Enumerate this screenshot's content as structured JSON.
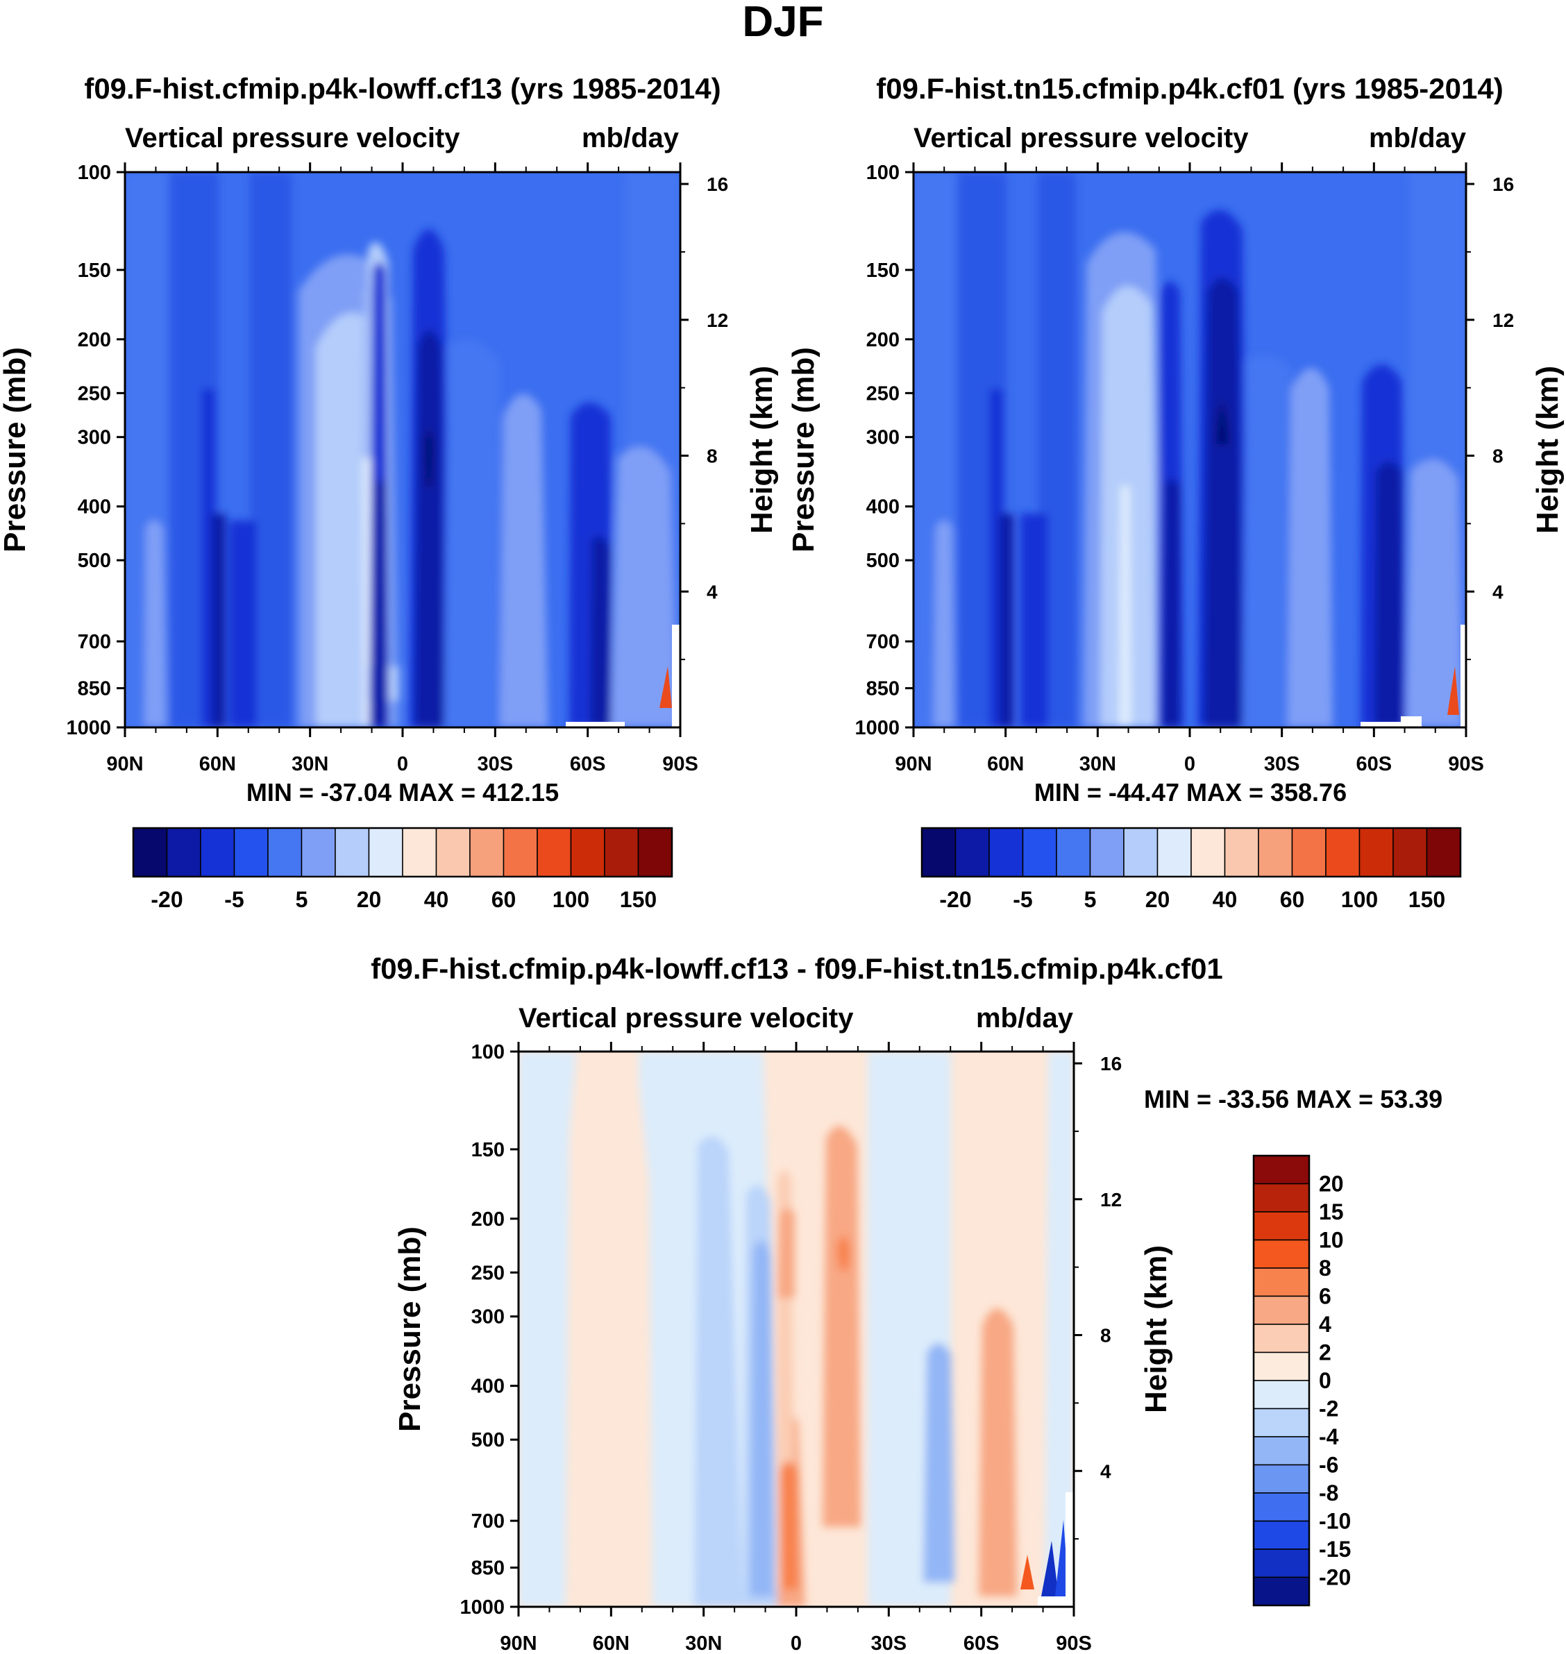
{
  "figure": {
    "title": "DJF",
    "colors": {
      "dark_navy": "#0a0f80",
      "deep_blue": "#1532d6",
      "mid_blue": "#3b6ef0",
      "light_blue": "#b4cdfb",
      "pale_peach": "#fde7d8",
      "light_salmon": "#f6b79a",
      "orange_red": "#e8501f",
      "dark_red": "#8b0a0a"
    }
  },
  "chart_data": [
    {
      "type": "heatmap",
      "title": "f09.F-hist.cfmip.p4k-lowff.cf13 (yrs 1985-2014)",
      "subtitle_left": "Vertical pressure velocity",
      "subtitle_right": "mb/day",
      "xlabel": "",
      "ylabel": "Pressure (mb)",
      "y2label": "Height (km)",
      "x_ticks": [
        "90N",
        "60N",
        "30N",
        "0",
        "30S",
        "60S",
        "90S"
      ],
      "y_ticks": [
        100,
        150,
        200,
        250,
        300,
        400,
        500,
        700,
        850,
        1000
      ],
      "y_scale": "log",
      "y_reversed": true,
      "y2_ticks": [
        16,
        12,
        8,
        4
      ],
      "stats": "MIN = -37.04  MAX = 412.15",
      "min": -37.04,
      "max": 412.15,
      "colorbar": {
        "orientation": "horizontal",
        "labels": [
          "-20",
          "-5",
          "5",
          "20",
          "40",
          "60",
          "100",
          "150"
        ],
        "colors": [
          "#06086e",
          "#0c1aa6",
          "#1532d6",
          "#2352ee",
          "#4577f2",
          "#7f9ff6",
          "#b4cdfb",
          "#deebfd",
          "#fde7d8",
          "#f9c8ae",
          "#f6a07c",
          "#f37347",
          "#ea4a1c",
          "#cc2c08",
          "#aa1c0a",
          "#7e0606"
        ]
      }
    },
    {
      "type": "heatmap",
      "title": "f09.F-hist.tn15.cfmip.p4k.cf01 (yrs 1985-2014)",
      "subtitle_left": "Vertical pressure velocity",
      "subtitle_right": "mb/day",
      "xlabel": "",
      "ylabel": "Pressure (mb)",
      "y2label": "Height (km)",
      "x_ticks": [
        "90N",
        "60N",
        "30N",
        "0",
        "30S",
        "60S",
        "90S"
      ],
      "y_ticks": [
        100,
        150,
        200,
        250,
        300,
        400,
        500,
        700,
        850,
        1000
      ],
      "y_scale": "log",
      "y_reversed": true,
      "y2_ticks": [
        16,
        12,
        8,
        4
      ],
      "stats": "MIN = -44.47  MAX = 358.76",
      "min": -44.47,
      "max": 358.76,
      "colorbar": {
        "orientation": "horizontal",
        "labels": [
          "-20",
          "-5",
          "5",
          "20",
          "40",
          "60",
          "100",
          "150"
        ],
        "colors": [
          "#06086e",
          "#0c1aa6",
          "#1532d6",
          "#2352ee",
          "#4577f2",
          "#7f9ff6",
          "#b4cdfb",
          "#deebfd",
          "#fde7d8",
          "#f9c8ae",
          "#f6a07c",
          "#f37347",
          "#ea4a1c",
          "#cc2c08",
          "#aa1c0a",
          "#7e0606"
        ]
      }
    },
    {
      "type": "heatmap",
      "title": "f09.F-hist.cfmip.p4k-lowff.cf13 - f09.F-hist.tn15.cfmip.p4k.cf01",
      "subtitle_left": "Vertical pressure velocity",
      "subtitle_right": "mb/day",
      "xlabel": "",
      "ylabel": "Pressure (mb)",
      "y2label": "Height (km)",
      "x_ticks": [
        "90N",
        "60N",
        "30N",
        "0",
        "30S",
        "60S",
        "90S"
      ],
      "y_ticks": [
        100,
        150,
        200,
        250,
        300,
        400,
        500,
        700,
        850,
        1000
      ],
      "y_scale": "log",
      "y_reversed": true,
      "y2_ticks": [
        16,
        12,
        8,
        4
      ],
      "stats": "MIN = -33.56  MAX =  53.39",
      "min": -33.56,
      "max": 53.39,
      "colorbar": {
        "orientation": "vertical",
        "labels": [
          "20",
          "15",
          "10",
          "8",
          "6",
          "4",
          "2",
          "0",
          "-2",
          "-4",
          "-6",
          "-8",
          "-10",
          "-15",
          "-20"
        ],
        "colors": [
          "#8b0a0a",
          "#b7240b",
          "#dc3a0e",
          "#f4581f",
          "#f8824e",
          "#f8a884",
          "#fbcdb4",
          "#fdebdd",
          "#dcecfb",
          "#bad4fa",
          "#93b6f6",
          "#6b96f2",
          "#3f6ff0",
          "#1f49e6",
          "#1230c4",
          "#08158a"
        ]
      }
    }
  ]
}
